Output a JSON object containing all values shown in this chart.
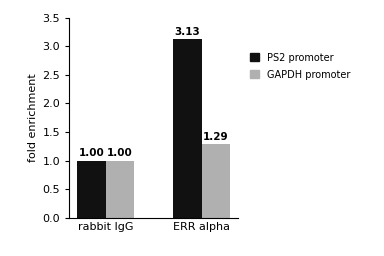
{
  "groups": [
    "rabbit IgG",
    "ERR alpha"
  ],
  "ps2_values": [
    1.0,
    3.13
  ],
  "gapdh_values": [
    1.0,
    1.29
  ],
  "ps2_color": "#111111",
  "gapdh_color": "#b0b0b0",
  "ylabel": "fold enrichment",
  "ylim": [
    0,
    3.5
  ],
  "yticks": [
    0.0,
    0.5,
    1.0,
    1.5,
    2.0,
    2.5,
    3.0,
    3.5
  ],
  "bar_width": 0.3,
  "legend_labels": [
    "PS2 promoter",
    "GAPDH promoter"
  ],
  "label_fontsize": 8,
  "tick_fontsize": 8,
  "bar_label_fontsize": 7.5
}
